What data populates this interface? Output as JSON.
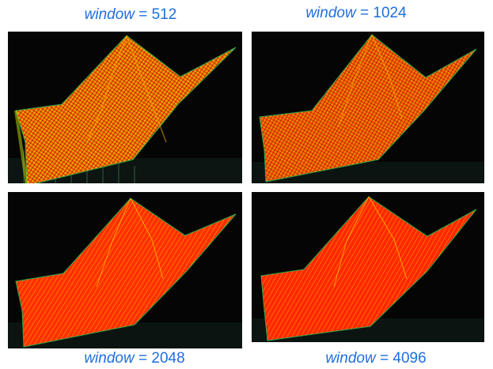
{
  "figure": {
    "variable_word": "window",
    "panels": [
      {
        "equals": "=",
        "value": "512"
      },
      {
        "equals": "=",
        "value": "1024"
      },
      {
        "equals": "=",
        "value": "2048"
      },
      {
        "equals": "=",
        "value": "4096"
      }
    ]
  },
  "colors": {
    "label_text": "#1f6fe0",
    "background": "#050505",
    "ridge_hot": "#ff2a00",
    "ridge_warm": "#ff7a00",
    "ridge_yellow": "#d8e000",
    "edge_green": "#2fa84f"
  }
}
